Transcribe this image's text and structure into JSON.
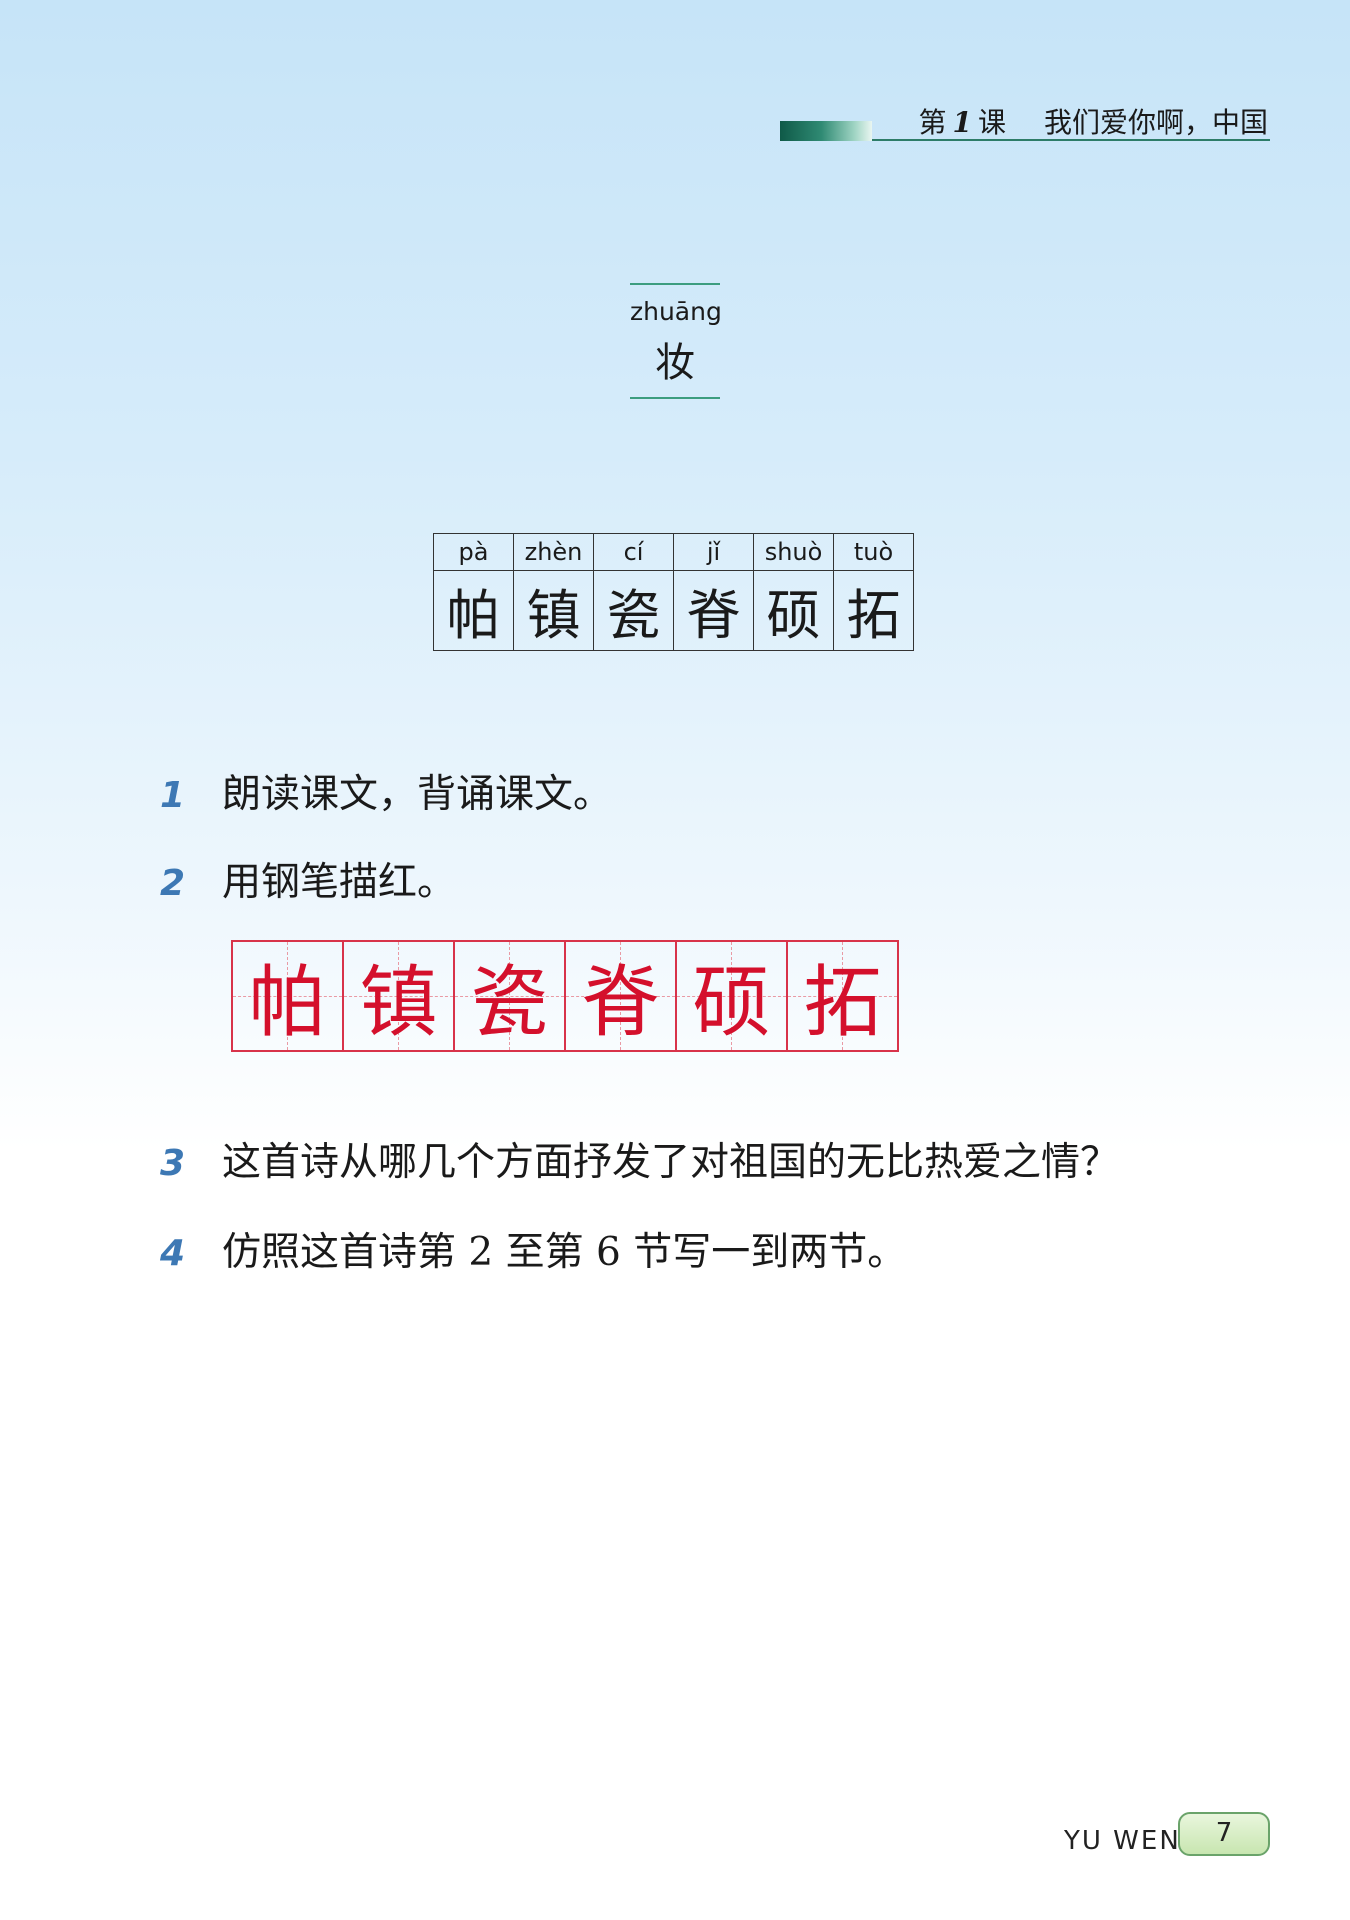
{
  "header": {
    "lesson_prefix": "第",
    "lesson_number": "1",
    "lesson_suffix": "课",
    "lesson_title": "我们爱你啊，中国"
  },
  "word_box": {
    "pinyin": "zhuāng",
    "character": "妆"
  },
  "new_characters": [
    {
      "pinyin": "pà",
      "character": "帕"
    },
    {
      "pinyin": "zhèn",
      "character": "镇"
    },
    {
      "pinyin": "cí",
      "character": "瓷"
    },
    {
      "pinyin": "jǐ",
      "character": "脊"
    },
    {
      "pinyin": "shuò",
      "character": "硕"
    },
    {
      "pinyin": "tuò",
      "character": "拓"
    }
  ],
  "exercises": [
    {
      "number": "1",
      "text": "朗读课文，背诵课文。"
    },
    {
      "number": "2",
      "text": "用钢笔描红。"
    },
    {
      "number": "3",
      "text": "这首诗从哪几个方面抒发了对祖国的无比热爱之情？"
    },
    {
      "number": "4",
      "text": "仿照这首诗第 2 至第 6 节写一到两节。"
    }
  ],
  "tracing": [
    "帕",
    "镇",
    "瓷",
    "脊",
    "硕",
    "拓"
  ],
  "colors": {
    "accent_green": "#2d7c68",
    "number_blue": "#3d78b4",
    "trace_red": "#d4102c"
  },
  "footer": {
    "label": "YU WEN",
    "page": "7"
  }
}
